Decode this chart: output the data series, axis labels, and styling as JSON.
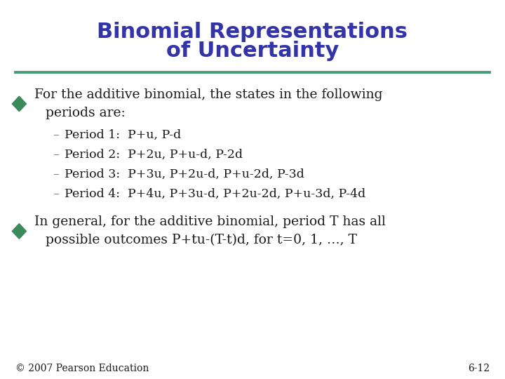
{
  "title_line1": "Binomial Representations",
  "title_line2": "of Uncertainty",
  "title_color": "#3333AA",
  "title_fontsize": 22,
  "separator_color": "#4A9A7A",
  "bullet_color": "#3A8A5A",
  "bullet1_text_line1": "For the additive binomial, the states in the following",
  "bullet1_text_line2": "periods are:",
  "sub_items": [
    "Period 1:  P+u, P-d",
    "Period 2:  P+2u, P+u-d, P-2d",
    "Period 3:  P+3u, P+2u-d, P+u-2d, P-3d",
    "Period 4:  P+4u, P+3u-d, P+2u-2d, P+u-3d, P-4d"
  ],
  "bullet2_text_line1": "In general, for the additive binomial, period T has all",
  "bullet2_text_line2": "possible outcomes P+tu-(T-t)d, for t=0, 1, …, T",
  "footer_left": "© 2007 Pearson Education",
  "footer_right": "6-12",
  "title_fontsize_val": 22,
  "body_fontsize": 13.5,
  "sub_fontsize": 12.5,
  "footer_fontsize": 10,
  "background_color": "#FFFFFF",
  "text_color": "#1a1a1a",
  "dash_color": "#666666"
}
